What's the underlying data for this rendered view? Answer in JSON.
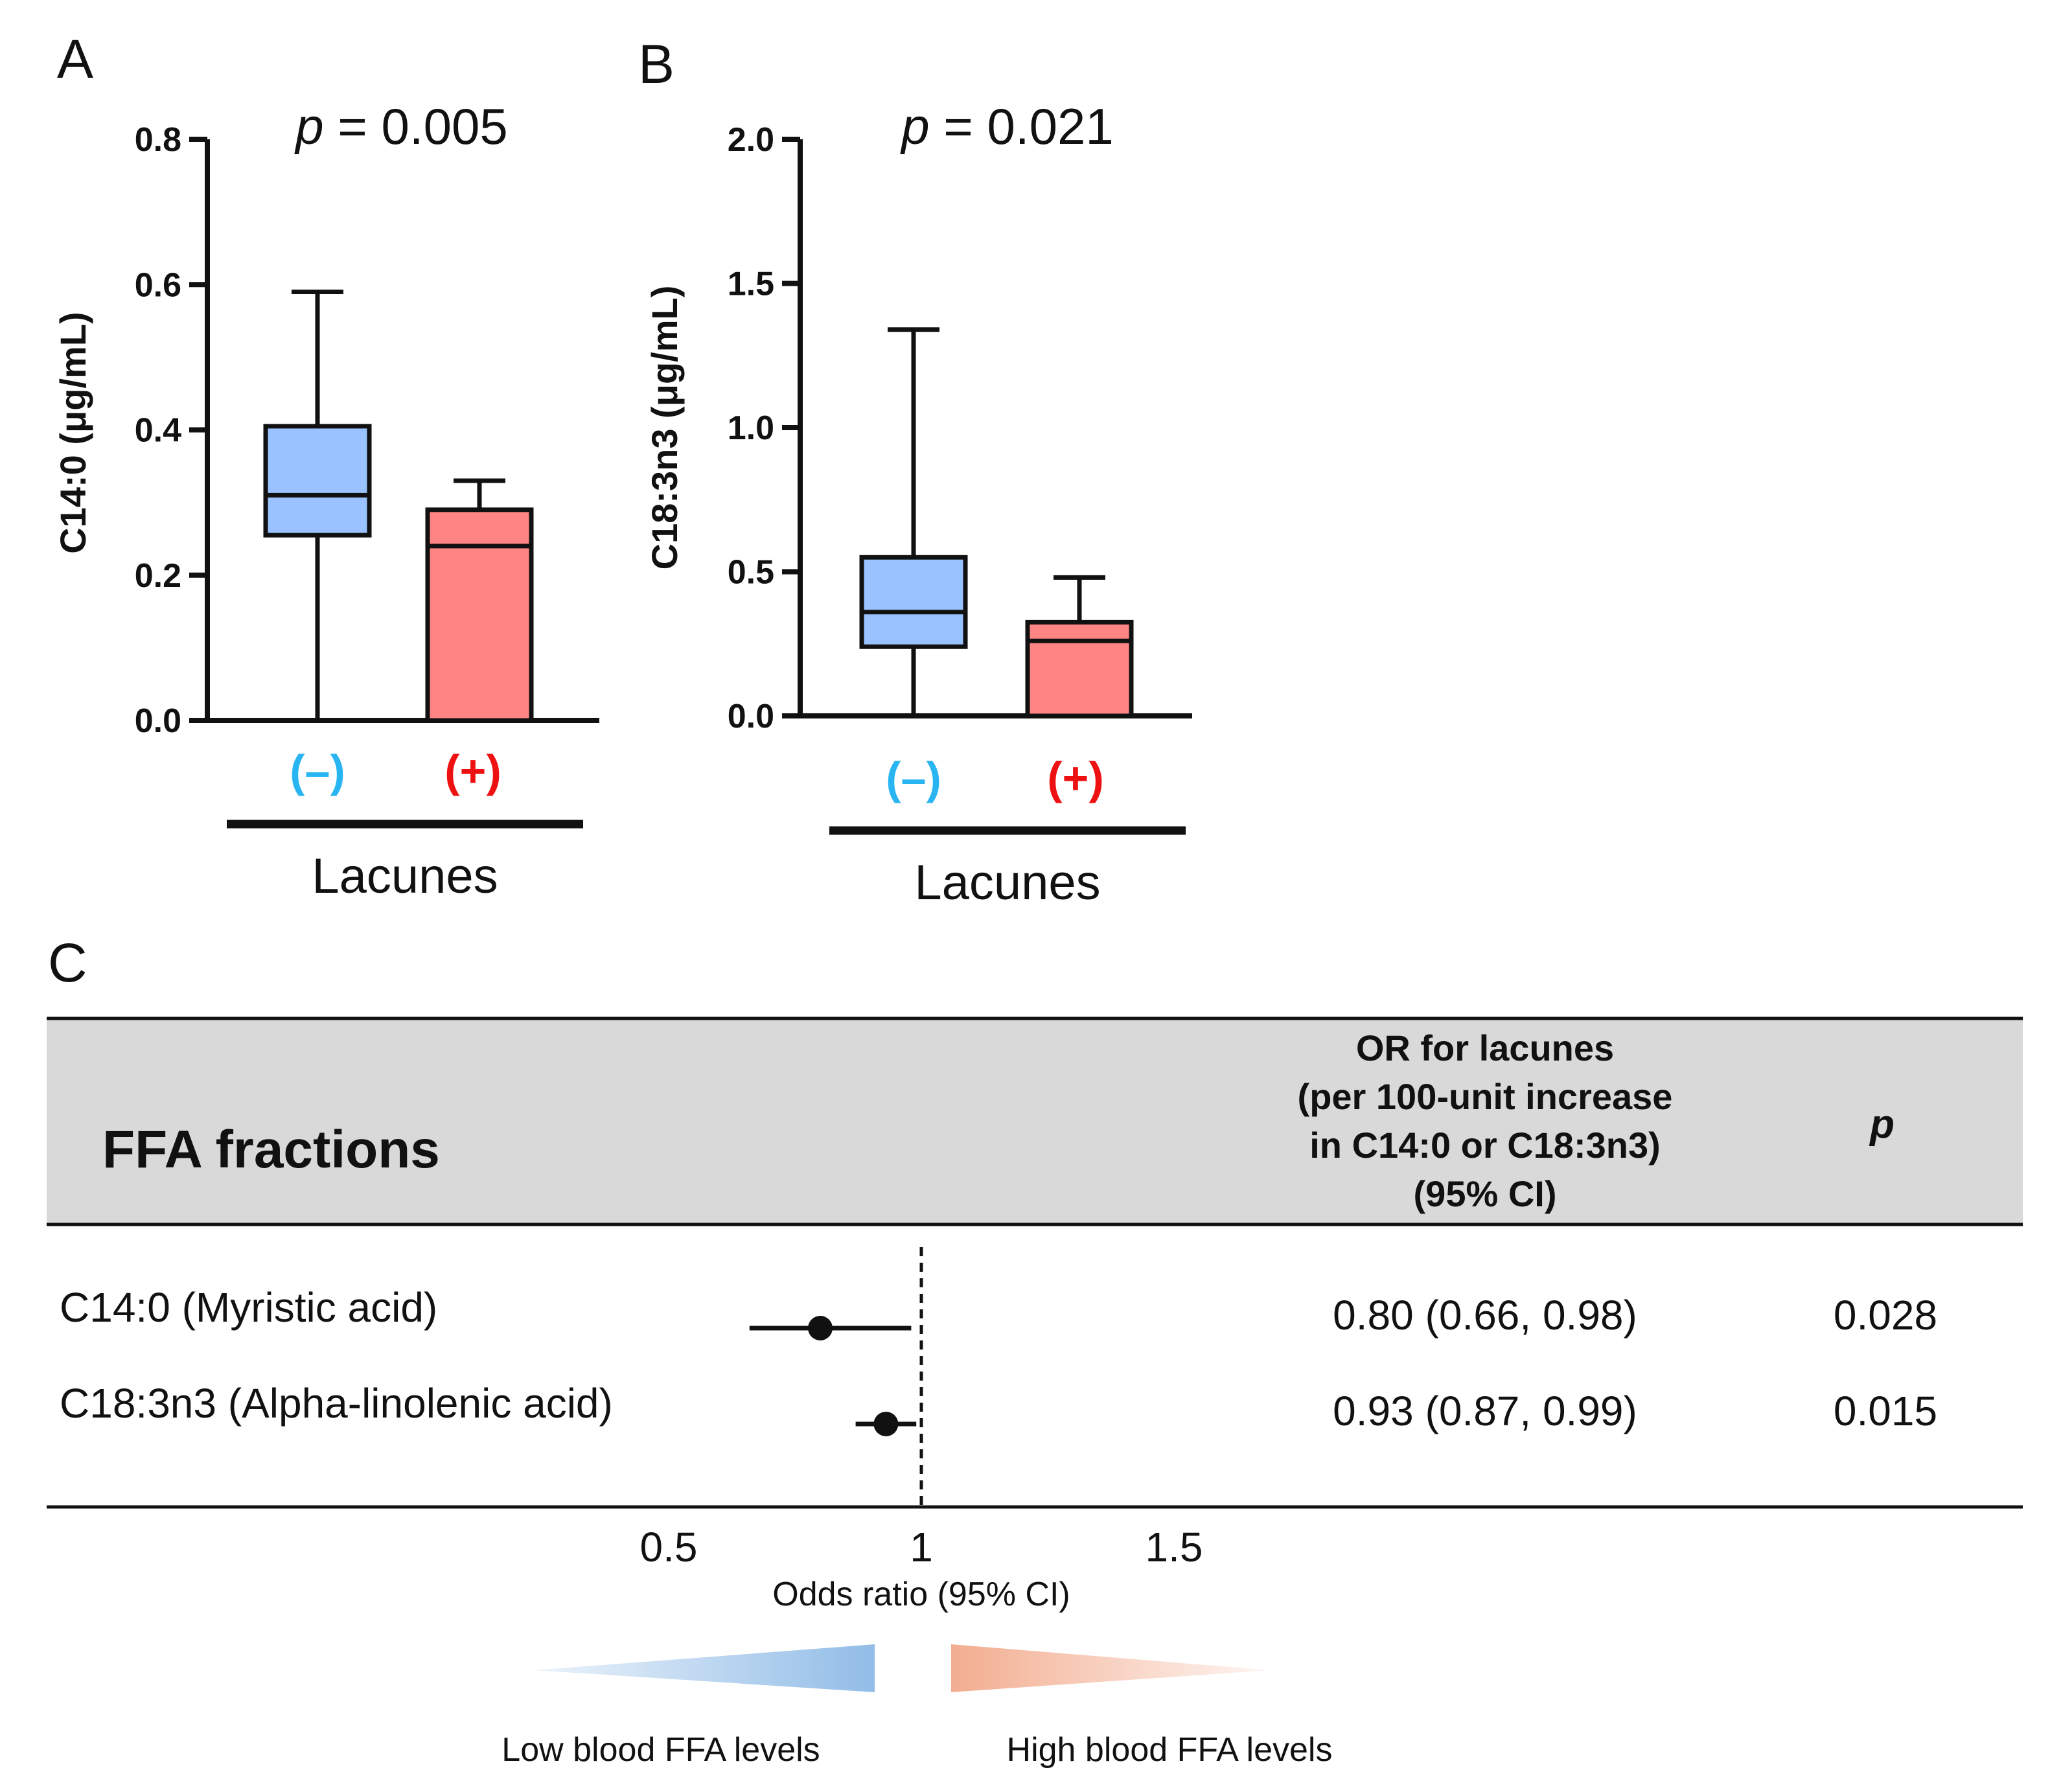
{
  "panels": {
    "A": {
      "letter": "A",
      "p_prefix": "p",
      "p_suffix": " = 0.005",
      "ylabel": "C14:0 (μg/mL)",
      "xlabel": "Lacunes"
    },
    "B": {
      "letter": "B",
      "p_prefix": "p",
      "p_suffix": " = 0.021",
      "ylabel": "C18:3n3 (μg/mL)",
      "xlabel": "Lacunes"
    },
    "C": {
      "letter": "C",
      "header_label": "FFA fractions",
      "header_or_lines": [
        "OR for lacunes",
        "(per 100-unit increase",
        "in C14:0 or C18:3n3)",
        "(95% CI)"
      ],
      "header_p": "p",
      "xlabel": "Odds ratio (95% CI)",
      "legend_low": "Low blood FFA levels",
      "legend_high": "High blood FFA levels"
    }
  },
  "chart_data": [
    {
      "type": "box",
      "panel": "A",
      "title": "p = 0.005",
      "ylabel": "C14:0 (μg/mL)",
      "xlabel": "Lacunes",
      "ylim": [
        0,
        0.8
      ],
      "yticks": [
        "0.0",
        "0.2",
        "0.4",
        "0.6",
        "0.8"
      ],
      "categories": [
        "(–)",
        "(+)"
      ],
      "boxes": [
        {
          "name": "(–)",
          "min": 0.0,
          "q1": 0.255,
          "median": 0.31,
          "q3": 0.405,
          "max": 0.59,
          "color": "#99C2FF",
          "label_color": "#29B5F2"
        },
        {
          "name": "(+)",
          "min": 0.0,
          "q1": 0.0,
          "median": 0.24,
          "q3": 0.29,
          "max": 0.33,
          "color": "#FF8585",
          "label_color": "#EE1111"
        }
      ]
    },
    {
      "type": "box",
      "panel": "B",
      "title": "p = 0.021",
      "ylabel": "C18:3n3 (μg/mL)",
      "xlabel": "Lacunes",
      "ylim": [
        0,
        2.0
      ],
      "yticks": [
        "0.0",
        "0.5",
        "1.0",
        "1.5",
        "2.0"
      ],
      "categories": [
        "(–)",
        "(+)"
      ],
      "boxes": [
        {
          "name": "(–)",
          "min": 0.0,
          "q1": 0.24,
          "median": 0.36,
          "q3": 0.55,
          "max": 1.34,
          "color": "#99C2FF",
          "label_color": "#29B5F2"
        },
        {
          "name": "(+)",
          "min": 0.0,
          "q1": 0.0,
          "median": 0.26,
          "q3": 0.325,
          "max": 0.48,
          "color": "#FF8585",
          "label_color": "#EE1111"
        }
      ]
    },
    {
      "type": "forest",
      "panel": "C",
      "xlabel": "Odds ratio (95% CI)",
      "xticks": [
        "0.5",
        "1",
        "1.5"
      ],
      "xlim": [
        0.5,
        1.5
      ],
      "reference": 1,
      "rows": [
        {
          "label": "C14:0 (Myristic acid)",
          "or": 0.8,
          "lo": 0.66,
          "hi": 0.98,
          "or_text": "0.80 (0.66, 0.98)",
          "p": "0.028"
        },
        {
          "label": "C18:3n3 (Alpha-linolenic acid)",
          "or": 0.93,
          "lo": 0.87,
          "hi": 0.99,
          "or_text": "0.93 (0.87, 0.99)",
          "p": "0.015"
        }
      ],
      "colors": {
        "low": "#7FB1E3",
        "high": "#F2A98A",
        "header_bg": "#D9D9D9"
      }
    }
  ]
}
